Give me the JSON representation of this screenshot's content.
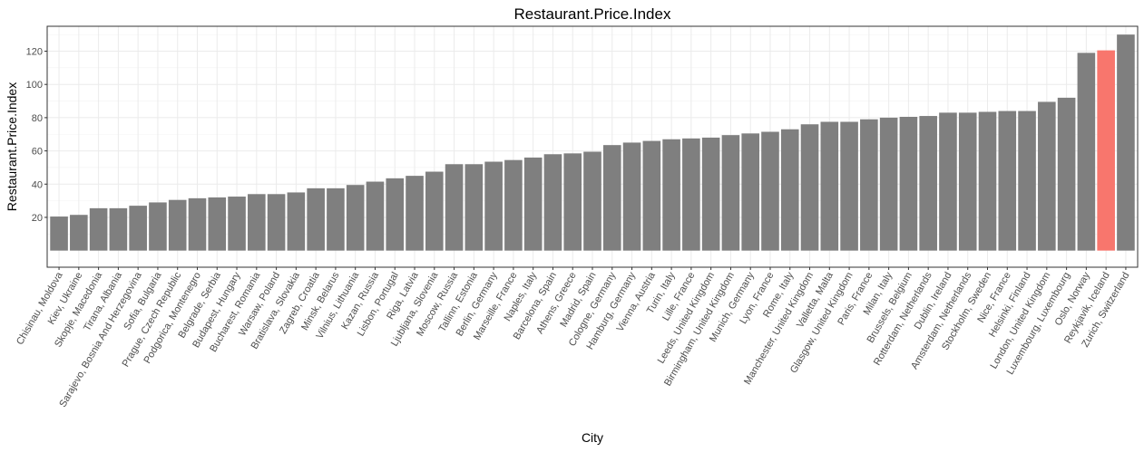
{
  "chart_data": {
    "type": "bar",
    "title": "Restaurant.Price.Index",
    "xlabel": "City",
    "ylabel": "Restaurant.Price.Index",
    "ylim": [
      0,
      135
    ],
    "yticks": [
      20,
      40,
      60,
      80,
      100,
      120
    ],
    "grid": true,
    "legend": "none",
    "colors": {
      "default": "#7f7f7f",
      "highlight": "#f8766d"
    },
    "highlight": "Reykjavik, Iceland",
    "categories": [
      "Chisinau, Moldova",
      "Kiev, Ukraine",
      "Skopje, Macedonia",
      "Tirana, Albania",
      "Sarajevo, Bosnia And Herzegovina",
      "Sofia, Bulgaria",
      "Prague, Czech Republic",
      "Podgorica, Montenegro",
      "Belgrade, Serbia",
      "Budapest, Hungary",
      "Bucharest, Romania",
      "Warsaw, Poland",
      "Bratislava, Slovakia",
      "Zagreb, Croatia",
      "Minsk, Belarus",
      "Vilnius, Lithuania",
      "Kazan, Russia",
      "Lisbon, Portugal",
      "Riga, Latvia",
      "Ljubljana, Slovenia",
      "Moscow, Russia",
      "Tallinn, Estonia",
      "Berlin, Germany",
      "Marseille, France",
      "Naples, Italy",
      "Barcelona, Spain",
      "Athens, Greece",
      "Madrid, Spain",
      "Cologne, Germany",
      "Hamburg, Germany",
      "Vienna, Austria",
      "Turin, Italy",
      "Lille, France",
      "Leeds, United Kingdom",
      "Birmingham, United Kingdom",
      "Munich, Germany",
      "Lyon, France",
      "Rome, Italy",
      "Manchester, United Kingdom",
      "Valletta, Malta",
      "Glasgow, United Kingdom",
      "Paris, France",
      "Milan, Italy",
      "Brussels, Belgium",
      "Rotterdam, Netherlands",
      "Dublin, Ireland",
      "Amsterdam, Netherlands",
      "Stockholm, Sweden",
      "Nice, France",
      "Helsinki, Finland",
      "London, United Kingdom",
      "Luxembourg, Luxembourg",
      "Oslo, Norway",
      "Reykjavik, Iceland",
      "Zurich, Switzerland"
    ],
    "values": [
      20.5,
      21.5,
      25.5,
      25.5,
      27,
      29,
      30.5,
      31.5,
      32,
      32.5,
      34,
      34,
      35,
      37.5,
      37.5,
      39.5,
      41.5,
      43.5,
      45,
      47.5,
      52,
      52,
      53.5,
      54.5,
      56,
      58,
      58.5,
      59.5,
      63.5,
      65,
      66,
      67,
      67.5,
      68,
      69.5,
      70.5,
      71.5,
      73,
      76,
      77.5,
      77.5,
      79,
      80,
      80.5,
      81,
      83,
      83,
      83.5,
      84,
      84,
      89.5,
      92,
      119,
      120.5,
      130
    ]
  }
}
